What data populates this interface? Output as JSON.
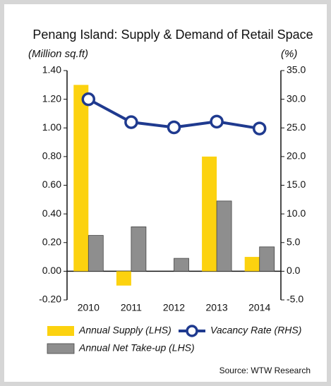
{
  "chart_data": {
    "type": "bar_line",
    "title": "Penang Island: Supply & Demand of Retail Space",
    "y_label": "(Million sq.ft)",
    "y2_label": "(%)",
    "source": "Source: WTW Research",
    "categories": [
      "2010",
      "2011",
      "2012",
      "2013",
      "2014"
    ],
    "series": [
      {
        "name": "Annual Supply (LHS)",
        "type": "bar",
        "color": "#fcd20f",
        "values": [
          1.3,
          -0.1,
          0,
          0.8,
          0.1
        ]
      },
      {
        "name": "Annual Net Take-up (LHS)",
        "type": "bar",
        "color": "#8e8e8e",
        "values": [
          0.25,
          0.31,
          0.09,
          0.49,
          0.17
        ]
      },
      {
        "name": "Vacancy Rate (RHS)",
        "type": "line",
        "axis": "y2",
        "color": "#1f3a8f",
        "values": [
          30.0,
          26.0,
          25.1,
          26.1,
          24.9
        ]
      }
    ],
    "ylim": [
      -0.2,
      1.4
    ],
    "yticks": [
      {
        "value": -0.2,
        "label": "-0.20"
      },
      {
        "value": 0,
        "label": "0.00"
      },
      {
        "value": 0.2,
        "label": "0.20"
      },
      {
        "value": 0.4,
        "label": "0.40"
      },
      {
        "value": 0.6,
        "label": "0.60"
      },
      {
        "value": 0.8,
        "label": "0.80"
      },
      {
        "value": 1.0,
        "label": "1.00"
      },
      {
        "value": 1.2,
        "label": "1.20"
      },
      {
        "value": 1.4,
        "label": "1.40"
      }
    ],
    "y2lim": [
      -5,
      35
    ],
    "y2ticks": [
      {
        "value": -5,
        "label": "-5.0"
      },
      {
        "value": 0,
        "label": "0.0"
      },
      {
        "value": 5,
        "label": "5.0"
      },
      {
        "value": 10,
        "label": "10.0"
      },
      {
        "value": 15,
        "label": "15.0"
      },
      {
        "value": 20,
        "label": "20.0"
      },
      {
        "value": 25,
        "label": "25.0"
      },
      {
        "value": 30,
        "label": "30.0"
      },
      {
        "value": 35,
        "label": "35.0"
      }
    ],
    "grid": false
  }
}
